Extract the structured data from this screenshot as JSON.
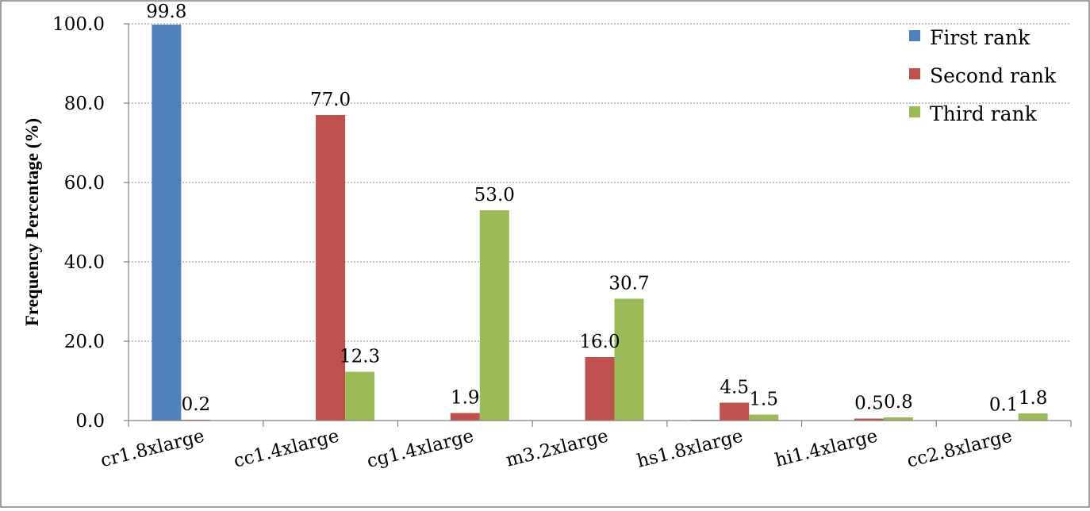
{
  "chart_data": {
    "type": "bar",
    "title": "",
    "xlabel": "",
    "ylabel": "Frequency Percentage (%)",
    "ylim": [
      0,
      100
    ],
    "yticks": [
      "0.0",
      "20.0",
      "40.0",
      "60.0",
      "80.0",
      "100.0"
    ],
    "ytick_values": [
      0,
      20,
      40,
      60,
      80,
      100
    ],
    "grid": true,
    "legend_position": "top-right",
    "categories": [
      "cr1.8xlarge",
      "cc1.4xlarge",
      "cg1.4xlarge",
      "m3.2xlarge",
      "hs1.8xlarge",
      "hi1.4xlarge",
      "cc2.8xlarge"
    ],
    "series": [
      {
        "name": "First rank",
        "color": "#4f81bd",
        "values": [
          99.8,
          0,
          0,
          0,
          0.2,
          0,
          0
        ],
        "labels": [
          "99.8",
          "",
          "",
          "",
          "",
          "",
          ""
        ]
      },
      {
        "name": "Second rank",
        "color": "#c0504d",
        "values": [
          0.2,
          77.0,
          1.9,
          16.0,
          4.5,
          0.5,
          0.1
        ],
        "labels": [
          "0.2",
          "77.0",
          "1.9",
          "16.0",
          "4.5",
          "0.5",
          "0.1"
        ]
      },
      {
        "name": "Third rank",
        "color": "#9bbb59",
        "values": [
          0,
          12.3,
          53.0,
          30.7,
          1.5,
          0.8,
          1.8
        ],
        "labels": [
          "",
          "12.3",
          "53.0",
          "30.7",
          "1.5",
          "0.8",
          "1.8"
        ]
      }
    ]
  }
}
